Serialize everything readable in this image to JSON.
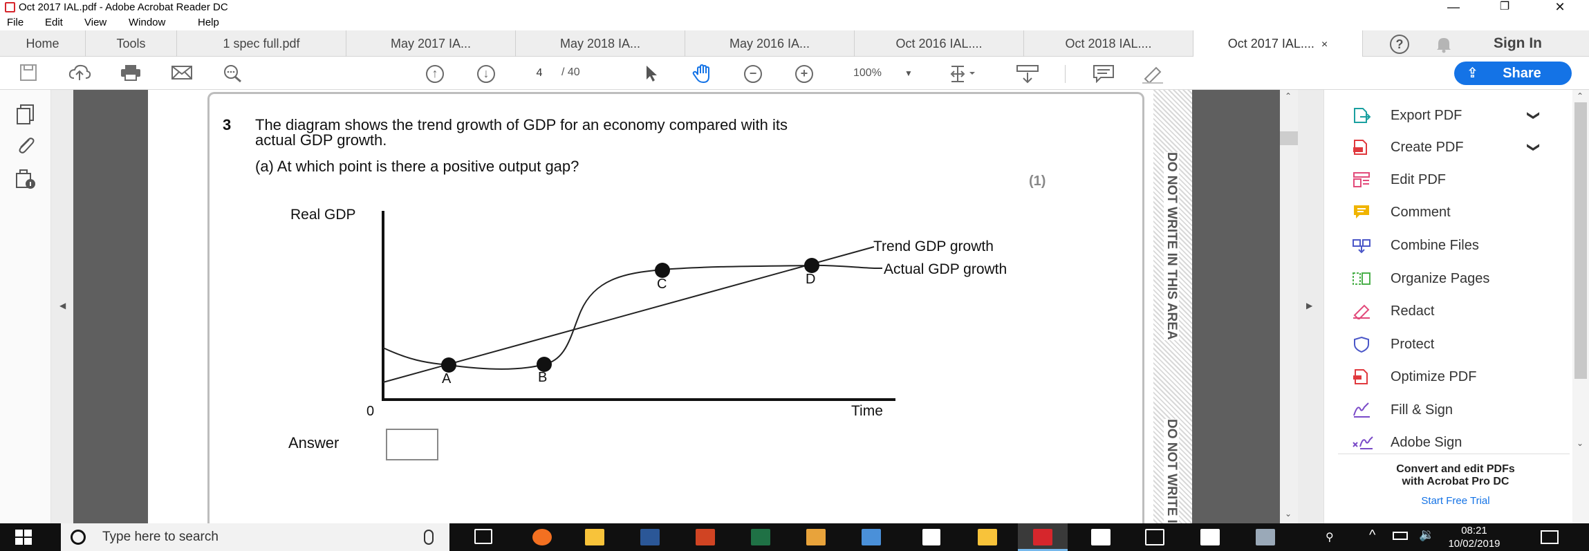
{
  "window": {
    "title": "Oct 2017 IAL.pdf - Adobe Acrobat Reader DC",
    "minimize": "—",
    "restore": "❐",
    "close": "✕"
  },
  "menu": [
    "File",
    "Edit",
    "View",
    "Window",
    "Help"
  ],
  "tabs": {
    "home": "Home",
    "tools": "Tools",
    "docs": [
      "1 spec full.pdf",
      "May 2017 IA...",
      "May 2018 IA...",
      "May 2016 IA...",
      "Oct 2016 IAL....",
      "Oct 2018 IAL....",
      "Oct 2017 IAL...."
    ],
    "active_close": "×",
    "sign_in": "Sign In"
  },
  "toolbar": {
    "page_current": "4",
    "page_total": "/ 40",
    "zoom": "100%",
    "share": "Share"
  },
  "document": {
    "question_number": "3",
    "question_line1": "The diagram shows the trend growth of GDP for an economy compared with its",
    "question_line2": "actual GDP growth.",
    "part_a": "(a)  At which point is there a positive output gap?",
    "marks": "(1)",
    "answer_label": "Answer",
    "margin_text_1": "DO NOT WRITE IN THIS AREA",
    "margin_text_2": "DO NOT WRITE IN"
  },
  "chart_data": {
    "type": "line",
    "title": "",
    "xlabel": "Time",
    "ylabel": "Real GDP",
    "origin_label": "0",
    "series": [
      {
        "name": "Trend GDP growth"
      },
      {
        "name": "Actual GDP growth"
      }
    ],
    "points": [
      "A",
      "B",
      "C",
      "D"
    ]
  },
  "right_pane": {
    "tools": [
      {
        "label": "Export PDF",
        "icon": "export-pdf-icon",
        "color": "#1aa0a0",
        "chevron": "❯"
      },
      {
        "label": "Create PDF",
        "icon": "create-pdf-icon",
        "color": "#e0393e",
        "chevron": "❯"
      },
      {
        "label": "Edit PDF",
        "icon": "edit-pdf-icon",
        "color": "#e24a7a"
      },
      {
        "label": "Comment",
        "icon": "comment-icon",
        "color": "#f0b400"
      },
      {
        "label": "Combine Files",
        "icon": "combine-files-icon",
        "color": "#4b57c8"
      },
      {
        "label": "Organize Pages",
        "icon": "organize-pages-icon",
        "color": "#4bb04b"
      },
      {
        "label": "Redact",
        "icon": "redact-icon",
        "color": "#e24a7a"
      },
      {
        "label": "Protect",
        "icon": "protect-icon",
        "color": "#4b57c8"
      },
      {
        "label": "Optimize PDF",
        "icon": "optimize-pdf-icon",
        "color": "#e0393e"
      },
      {
        "label": "Fill & Sign",
        "icon": "fill-sign-icon",
        "color": "#7a4ac8"
      },
      {
        "label": "Adobe Sign",
        "icon": "adobe-sign-icon",
        "color": "#7a4ac8"
      }
    ],
    "promo_line1": "Convert and edit PDFs",
    "promo_line2": "with Acrobat Pro DC",
    "trial": "Start Free Trial"
  },
  "taskbar": {
    "search_placeholder": "Type here to search",
    "time": "08:21",
    "date": "10/02/2019"
  }
}
